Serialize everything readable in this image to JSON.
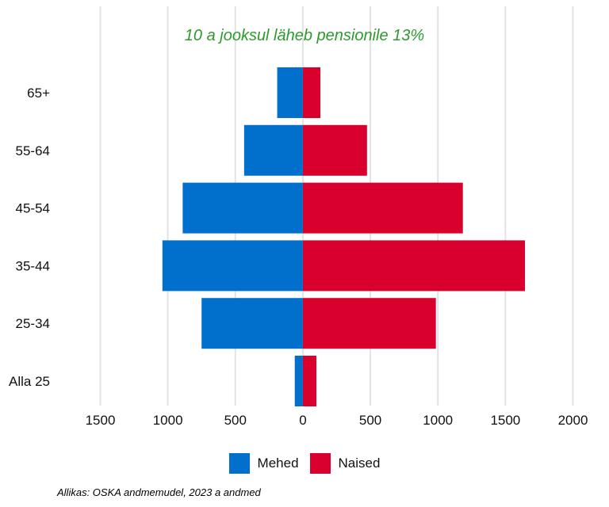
{
  "chart_data": {
    "type": "bar",
    "orientation": "horizontal",
    "categories": [
      "65+",
      "55-64",
      "45-54",
      "35-44",
      "25-34",
      "Alla 25"
    ],
    "series": [
      {
        "name": "Mehed",
        "values": [
          -190,
          -435,
          -890,
          -1040,
          -750,
          -60
        ],
        "color": "#0070cc"
      },
      {
        "name": "Naised",
        "values": [
          130,
          475,
          1185,
          1645,
          985,
          100
        ],
        "color": "#d9002e"
      }
    ],
    "xlim": [
      -1500,
      2000
    ],
    "xticks": [
      -1500,
      -1000,
      -500,
      0,
      500,
      1000,
      1500,
      2000
    ],
    "xtick_labels": [
      "1500",
      "1000",
      "500",
      "0",
      "500",
      "1000",
      "1500",
      "2000"
    ],
    "grid": true,
    "legend_position": "bottom",
    "annotation": "10 a jooksul läheb pensionile 13%",
    "annotation_color": "#2e9a2e",
    "xlabel": "",
    "ylabel": ""
  },
  "source": "Allikas: OSKA andmemudel, 2023 a andmed"
}
